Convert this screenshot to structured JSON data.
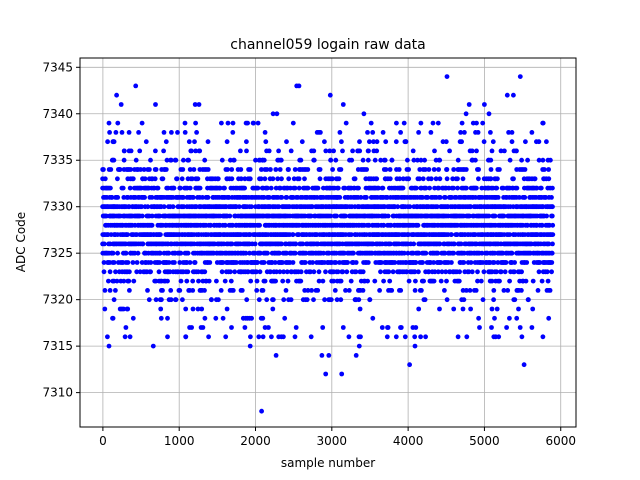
{
  "chart_data": {
    "type": "scatter",
    "title": "channel059 logain raw data",
    "xlabel": "sample number",
    "ylabel": "ADC Code",
    "xlim": [
      -300,
      6200
    ],
    "ylim": [
      7306.3,
      7346.0
    ],
    "xticks": [
      0,
      1000,
      2000,
      3000,
      4000,
      5000,
      6000
    ],
    "yticks": [
      7310,
      7315,
      7320,
      7325,
      7330,
      7335,
      7340,
      7345
    ],
    "grid": true,
    "marker_color": "#0000ff",
    "series": [
      {
        "x_range": [
          0,
          5900
        ],
        "y_center": 7328,
        "y_dense_band": [
          7320,
          7336
        ],
        "outliers": [
          {
            "x": 180,
            "y": 7342
          },
          {
            "x": 240,
            "y": 7341
          },
          {
            "x": 430,
            "y": 7343
          },
          {
            "x": 690,
            "y": 7341
          },
          {
            "x": 2080,
            "y": 7308
          },
          {
            "x": 2540,
            "y": 7343
          },
          {
            "x": 2570,
            "y": 7343
          },
          {
            "x": 2980,
            "y": 7342
          },
          {
            "x": 3150,
            "y": 7341
          },
          {
            "x": 4510,
            "y": 7344
          },
          {
            "x": 5470,
            "y": 7344
          },
          {
            "x": 5520,
            "y": 7313
          },
          {
            "x": 4020,
            "y": 7313
          },
          {
            "x": 2920,
            "y": 7312
          },
          {
            "x": 3130,
            "y": 7312
          },
          {
            "x": 80,
            "y": 7315
          },
          {
            "x": 660,
            "y": 7315
          },
          {
            "x": 1930,
            "y": 7315
          },
          {
            "x": 1310,
            "y": 7317
          },
          {
            "x": 2270,
            "y": 7314
          },
          {
            "x": 2870,
            "y": 7314
          },
          {
            "x": 2960,
            "y": 7314
          },
          {
            "x": 3320,
            "y": 7314
          },
          {
            "x": 4090,
            "y": 7315
          },
          {
            "x": 3360,
            "y": 7315
          },
          {
            "x": 1210,
            "y": 7341
          },
          {
            "x": 1260,
            "y": 7341
          },
          {
            "x": 2230,
            "y": 7340
          },
          {
            "x": 2280,
            "y": 7340
          },
          {
            "x": 3420,
            "y": 7340
          },
          {
            "x": 5000,
            "y": 7341
          },
          {
            "x": 5300,
            "y": 7342
          },
          {
            "x": 5380,
            "y": 7342
          },
          {
            "x": 4760,
            "y": 7340
          },
          {
            "x": 4800,
            "y": 7341
          },
          {
            "x": 5060,
            "y": 7340
          }
        ]
      }
    ]
  }
}
